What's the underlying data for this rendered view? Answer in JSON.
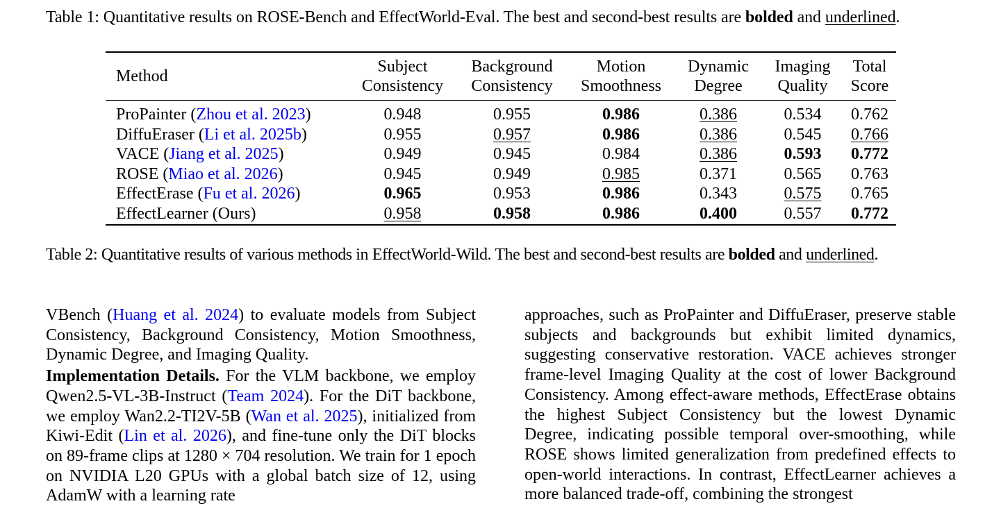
{
  "caption1": {
    "prefix": "Table 1: Quantitative results on ROSE-Bench and EffectWorld-Eval. The best and second-best results are ",
    "bold_word": "bolded",
    "and_word": " and ",
    "underline_word": "underlined",
    "suffix": "."
  },
  "table": {
    "headers": {
      "method": "Method",
      "columns": [
        {
          "line1": "Subject",
          "line2": "Consistency"
        },
        {
          "line1": "Background",
          "line2": "Consistency"
        },
        {
          "line1": "Motion",
          "line2": "Smoothness"
        },
        {
          "line1": "Dynamic",
          "line2": "Degree"
        },
        {
          "line1": "Imaging",
          "line2": "Quality"
        },
        {
          "line1": "Total",
          "line2": "Score"
        }
      ]
    },
    "rows": [
      {
        "name": "ProPainter",
        "cite": "Zhou et al. 2023",
        "values": [
          {
            "v": "0.948",
            "s": ""
          },
          {
            "v": "0.955",
            "s": ""
          },
          {
            "v": "0.986",
            "s": "b"
          },
          {
            "v": "0.386",
            "s": "u"
          },
          {
            "v": "0.534",
            "s": ""
          },
          {
            "v": "0.762",
            "s": ""
          }
        ]
      },
      {
        "name": "DiffuEraser",
        "cite": "Li et al. 2025b",
        "values": [
          {
            "v": "0.955",
            "s": ""
          },
          {
            "v": "0.957",
            "s": "u"
          },
          {
            "v": "0.986",
            "s": "b"
          },
          {
            "v": "0.386",
            "s": "u"
          },
          {
            "v": "0.545",
            "s": ""
          },
          {
            "v": "0.766",
            "s": "u"
          }
        ]
      },
      {
        "name": "VACE",
        "cite": "Jiang et al. 2025",
        "values": [
          {
            "v": "0.949",
            "s": ""
          },
          {
            "v": "0.945",
            "s": ""
          },
          {
            "v": "0.984",
            "s": ""
          },
          {
            "v": "0.386",
            "s": "u"
          },
          {
            "v": "0.593",
            "s": "b"
          },
          {
            "v": "0.772",
            "s": "b"
          }
        ]
      },
      {
        "name": "ROSE",
        "cite": "Miao et al. 2026",
        "values": [
          {
            "v": "0.945",
            "s": ""
          },
          {
            "v": "0.949",
            "s": ""
          },
          {
            "v": "0.985",
            "s": "u"
          },
          {
            "v": "0.371",
            "s": ""
          },
          {
            "v": "0.565",
            "s": ""
          },
          {
            "v": "0.763",
            "s": ""
          }
        ]
      },
      {
        "name": "EffectErase",
        "cite": "Fu et al. 2026",
        "values": [
          {
            "v": "0.965",
            "s": "b"
          },
          {
            "v": "0.953",
            "s": ""
          },
          {
            "v": "0.986",
            "s": "b"
          },
          {
            "v": "0.343",
            "s": ""
          },
          {
            "v": "0.575",
            "s": "u"
          },
          {
            "v": "0.765",
            "s": ""
          }
        ]
      },
      {
        "name": "EffectLearner (Ours)",
        "cite": "",
        "values": [
          {
            "v": "0.958",
            "s": "u"
          },
          {
            "v": "0.958",
            "s": "b"
          },
          {
            "v": "0.986",
            "s": "b"
          },
          {
            "v": "0.400",
            "s": "b"
          },
          {
            "v": "0.557",
            "s": ""
          },
          {
            "v": "0.772",
            "s": "b"
          }
        ]
      }
    ]
  },
  "caption2": {
    "prefix": "Table 2: Quantitative results of various methods in EffectWorld-Wild. The best and second-best results are ",
    "bold_word": "bolded",
    "and_word": " and ",
    "underline_word": "underlined",
    "suffix": "."
  },
  "left_column": {
    "p1": [
      {
        "t": "VBench ("
      },
      {
        "t": "Huang et al. 2024",
        "c": 1
      },
      {
        "t": ") to evaluate models from Subject Consistency, Background Consistency, Motion Smoothness, Dynamic Degree, and Imaging Quality."
      }
    ],
    "p2_heading": "Implementation Details.",
    "p2": [
      {
        "t": "  For the VLM backbone, we employ Qwen2.5-VL-3B-Instruct ("
      },
      {
        "t": "Team 2024",
        "c": 1
      },
      {
        "t": "). For the DiT backbone, we employ Wan2.2-TI2V-5B ("
      },
      {
        "t": "Wan et al. 2025",
        "c": 1
      },
      {
        "t": "), initialized from Kiwi-Edit ("
      },
      {
        "t": "Lin et al. 2026",
        "c": 1
      },
      {
        "t": "), and fine-tune only the DiT blocks on 89-frame clips at 1280 × 704 resolution. We train for 1 epoch on NVIDIA L20 GPUs with a global batch size of 12, using AdamW with a learning rate"
      }
    ]
  },
  "right_column": {
    "p1": "approaches, such as ProPainter and DiffuEraser, preserve stable subjects and backgrounds but exhibit limited dynamics, suggesting conservative restoration. VACE achieves stronger frame-level Imaging Quality at the cost of lower Background Consistency. Among effect-aware methods, EffectErase obtains the highest Subject Consistency but the lowest Dynamic Degree, indicating possible temporal over-smoothing, while ROSE shows limited generalization from predefined effects to open-world interactions. In contrast, EffectLearner achieves a more balanced trade-off, combining the strongest"
  }
}
